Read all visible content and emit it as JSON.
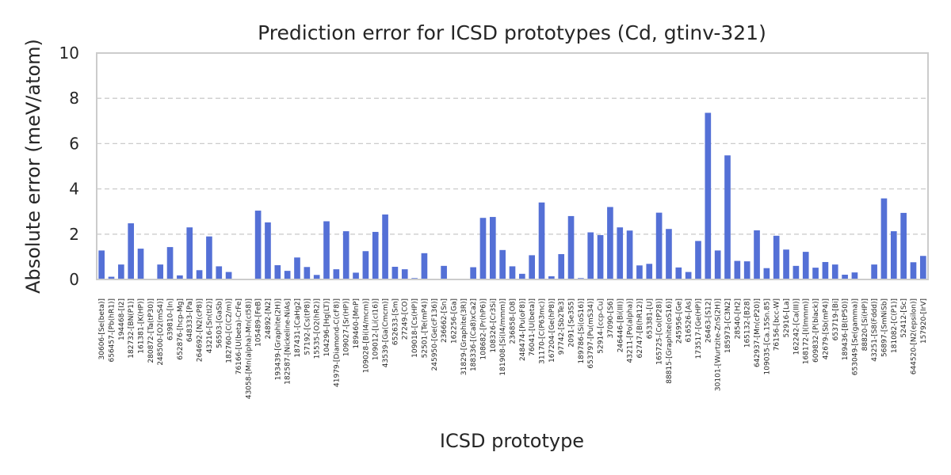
{
  "chart_data": {
    "type": "bar",
    "title": "Prediction error for ICSD prototypes (Cd, gtinv-321)",
    "xlabel": "ICSD prototype",
    "ylabel": "Absolute error (meV/atom)",
    "ylim": [
      0,
      10
    ],
    "yticks": [
      0,
      2,
      4,
      6,
      8,
      10
    ],
    "grid": true,
    "bar_color": "#5470d6",
    "categories": [
      "30606-[Se(beta)]",
      "656457-[Pb(hR1)]",
      "194468-[I2]",
      "182732-[BN(P1)]",
      "161381-[K(HP)]",
      "280872-[Ta(tP30)]",
      "248500-[O2(mS4)]",
      "639810-[In]",
      "652876-[hcp-Mg]",
      "648333-[Pa]",
      "264692-[N2(cP8)]",
      "43216-[Sn(tI2)]",
      "56503-[GaSb]",
      "182760-[C(C2/m)]",
      "76166-[U(beta)-CrFe]",
      "43058-[Mn(alpha)-Mn(cI58)]",
      "105489-[FeB]",
      "24892-[N2]",
      "193439-[Graphite(2H)]",
      "182587-[Nickeline-NiAs]",
      "187431-[CaHg2]",
      "57192-[Cs(tP8)]",
      "15535-[O2(hR2)]",
      "104296-[Hg(LT)]",
      "41979-[Diamond-C(cF8)]",
      "109027-[Sr(HP)]",
      "189460-[MnP]",
      "109028-[Bi(I4/mcm)]",
      "109012-[Li(cI16)]",
      "43539-[Ga(Cmcm)]",
      "652633-[Sm]",
      "27249-[CO]",
      "109018-[Cs(HP)]",
      "52501-[Te(mP4)]",
      "245950-[Ge(cF136)]",
      "236662-[Sn]",
      "162256-[Ga]",
      "31829-[Graphite(3R)]",
      "188336-[(Ca8)xCa2]",
      "108682-[Pr(hP6)]",
      "108326-[Cr3Si]",
      "181908-[Si(I4/mmm)]",
      "236858-[O8]",
      "248474-[Pu(oF8)]",
      "76041-[U(beta)]",
      "31170-[C(P63mc)]",
      "167204-[Ge(hP8)]",
      "97742-[Sb2Te3]",
      "2091-[Se3S5]",
      "189786-[Si(oS16)]",
      "653797-[Pu(mS34)]",
      "52914-[ccp-Cu]",
      "37090-[S6]",
      "246446-[Bi(III)]",
      "43211-[Po(alpha)]",
      "62747-[B(hR12)]",
      "653381-[U]",
      "165725-[Co(tP28)]",
      "88815-[Graphite(oS16)]",
      "245956-[Ge]",
      "616526-[As]",
      "173517-[Ge(HP)]",
      "26463-[S12]",
      "30101-[Wurtzite-ZnS(2H)]",
      "185973-[C3N2]",
      "28540-[H2]",
      "165132-[B28]",
      "642937-[Mn(cP20)]",
      "109035-[Ca.15Sn.85]",
      "76156-[bcc-W]",
      "52916-[La]",
      "162242-[Ca(III)]",
      "168172-[I(Immm)]",
      "609832-[P(black)]",
      "42679-[Sb(mP4)]",
      "653719-[Bi]",
      "189436-[B(tP50)]",
      "653049-[Se(gamma)]",
      "88820-[Si(HP)]",
      "43251-[S8(Fddd)]",
      "56897-[SmNiSb]",
      "181082-[C(P1)]",
      "52412-[Sc]",
      "644520-[N2(epsilon)]",
      "157920-[IrV]"
    ],
    "values": [
      1.28,
      0.12,
      0.66,
      2.48,
      1.36,
      0.0,
      0.66,
      1.43,
      0.18,
      2.3,
      0.41,
      1.9,
      0.58,
      0.33,
      0.0,
      0.0,
      3.04,
      2.52,
      0.63,
      0.38,
      0.97,
      0.55,
      0.2,
      2.57,
      0.45,
      2.13,
      0.3,
      1.25,
      2.1,
      2.87,
      0.56,
      0.45,
      0.06,
      1.16,
      0.0,
      0.6,
      0.0,
      0.0,
      0.54,
      2.72,
      2.76,
      1.3,
      0.58,
      0.25,
      1.07,
      3.4,
      0.14,
      1.12,
      2.8,
      0.06,
      2.08,
      1.96,
      3.2,
      2.3,
      2.16,
      0.62,
      0.69,
      2.95,
      2.23,
      0.53,
      0.33,
      1.7,
      7.36,
      1.28,
      5.48,
      0.82,
      0.8,
      2.17,
      0.5,
      1.93,
      1.32,
      0.6,
      1.22,
      0.52,
      0.77,
      0.66,
      0.21,
      0.31,
      0.0,
      0.66,
      3.58,
      2.13,
      2.94,
      0.76,
      1.04
    ]
  }
}
